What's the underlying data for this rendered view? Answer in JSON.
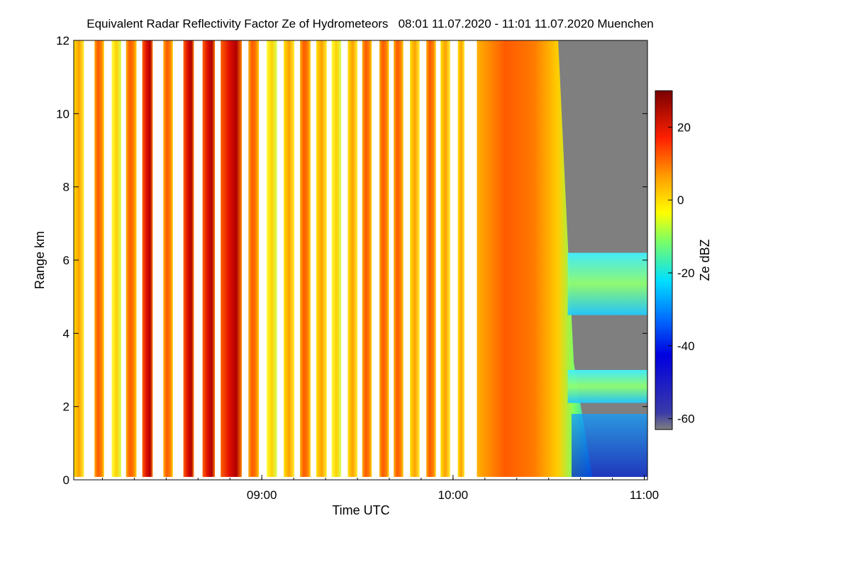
{
  "chart_data": {
    "type": "heatmap",
    "title": "Equivalent Radar Reflectivity Factor Ze of Hydrometeors   08:01 11.07.2020 - 11:01 11.07.2020 Muenchen",
    "xlabel": "Time UTC",
    "ylabel": "Range km",
    "colorbar_label": "Ze dBZ",
    "xlim_hours": [
      8.0167,
      11.0167
    ],
    "ylim_km": [
      0,
      12
    ],
    "x_ticks": [
      {
        "value": 9.0,
        "label": "09:00"
      },
      {
        "value": 10.0,
        "label": "10:00"
      },
      {
        "value": 11.0,
        "label": "11:00"
      }
    ],
    "y_ticks": [
      {
        "value": 0,
        "label": "0"
      },
      {
        "value": 2,
        "label": "2"
      },
      {
        "value": 4,
        "label": "4"
      },
      {
        "value": 6,
        "label": "6"
      },
      {
        "value": 8,
        "label": "8"
      },
      {
        "value": 10,
        "label": "10"
      },
      {
        "value": 12,
        "label": "12"
      }
    ],
    "colorbar_ticks": [
      {
        "value": 20,
        "label": "20"
      },
      {
        "value": 0,
        "label": "0"
      },
      {
        "value": -20,
        "label": "-20"
      },
      {
        "value": -40,
        "label": "-40"
      },
      {
        "value": -60,
        "label": "-60"
      }
    ],
    "color_range_dbz": [
      -63,
      30
    ],
    "colormap": [
      "#7f7f7f",
      "#0000c8",
      "#0050ff",
      "#00d8ff",
      "#ffff00",
      "#ffa000",
      "#ff2000",
      "#7a0000"
    ],
    "no_data_color": "#7f7f7f",
    "grid": false,
    "legend": "colorbar-right",
    "profile_columns": [
      {
        "start": 8.017,
        "end": 8.07,
        "dbz": 5
      },
      {
        "start": 8.125,
        "end": 8.175,
        "dbz": 15
      },
      {
        "start": 8.215,
        "end": 8.265,
        "dbz": 2
      },
      {
        "start": 8.29,
        "end": 8.345,
        "dbz": 17
      },
      {
        "start": 8.375,
        "end": 8.43,
        "dbz": 22
      },
      {
        "start": 8.485,
        "end": 8.535,
        "dbz": 14
      },
      {
        "start": 8.59,
        "end": 8.645,
        "dbz": 20
      },
      {
        "start": 8.69,
        "end": 8.755,
        "dbz": 22
      },
      {
        "start": 8.785,
        "end": 8.895,
        "dbz": 25
      },
      {
        "start": 8.93,
        "end": 8.985,
        "dbz": 10
      },
      {
        "start": 9.025,
        "end": 9.08,
        "dbz": 3
      },
      {
        "start": 9.115,
        "end": 9.17,
        "dbz": 8
      },
      {
        "start": 9.2,
        "end": 9.255,
        "dbz": 12
      },
      {
        "start": 9.285,
        "end": 9.34,
        "dbz": 6
      },
      {
        "start": 9.365,
        "end": 9.415,
        "dbz": 2
      },
      {
        "start": 9.45,
        "end": 9.5,
        "dbz": 8
      },
      {
        "start": 9.525,
        "end": 9.575,
        "dbz": 18
      },
      {
        "start": 9.615,
        "end": 9.665,
        "dbz": 12
      },
      {
        "start": 9.69,
        "end": 9.74,
        "dbz": 16
      },
      {
        "start": 9.775,
        "end": 9.825,
        "dbz": 5
      },
      {
        "start": 9.86,
        "end": 9.91,
        "dbz": 10
      },
      {
        "start": 9.935,
        "end": 9.985,
        "dbz": 8
      },
      {
        "start": 10.025,
        "end": 10.06,
        "dbz": 6
      },
      {
        "start": 10.125,
        "end": 10.55,
        "dbz": 12
      }
    ],
    "cloud_layers": [
      {
        "time_start": 10.6,
        "time_end": 11.017,
        "base_km": 4.5,
        "top_km": 6.2,
        "dbz": -22
      },
      {
        "time_start": 10.6,
        "time_end": 11.017,
        "base_km": 2.1,
        "top_km": 3.0,
        "dbz": -25
      },
      {
        "time_start": 10.62,
        "time_end": 11.017,
        "base_km": 0.0,
        "top_km": 1.8,
        "dbz": -42
      }
    ]
  }
}
